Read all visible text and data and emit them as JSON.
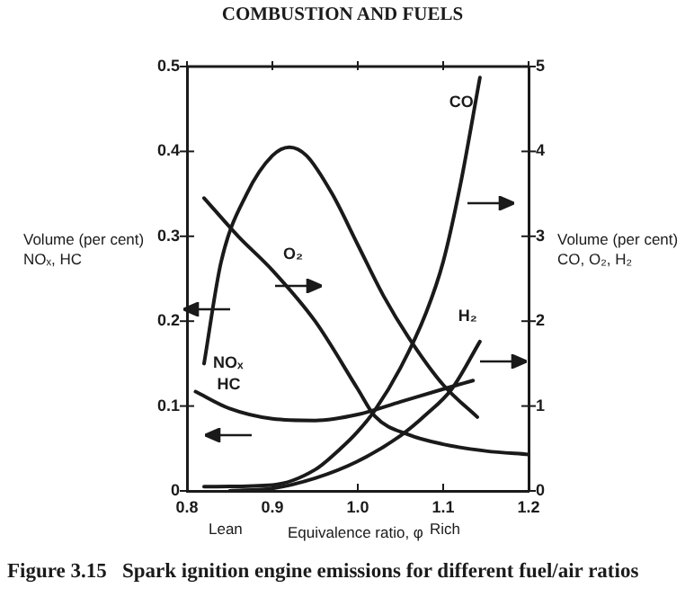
{
  "chart_data": {
    "type": "line",
    "title": "Figure 3.15   Spark ignition engine emissions for different fuel/air ratios",
    "xlabel": "Equivalence ratio, φ",
    "ylabel": "Volume (per cent)\nNOₓ, HC",
    "y2label": "Volume (per cent)\nCO, O₂, H₂",
    "xlim": [
      0.8,
      1.2
    ],
    "xticks": [
      0.8,
      0.9,
      {
        "value": 1,
        "label": "1.0"
      },
      1.1,
      1.2
    ],
    "ylim": [
      0,
      0.5
    ],
    "yticks": [
      0,
      0.1,
      0.2,
      0.3,
      0.4,
      0.5
    ],
    "y2lim": [
      0,
      5
    ],
    "y2ticks": [
      0,
      1,
      2,
      3,
      4,
      5
    ],
    "grid": false,
    "legend": false,
    "marker": "none",
    "line_style": "solid",
    "series": [
      {
        "name": "NOₓ",
        "color": "#1a1a1a",
        "x": [
          0.82,
          0.84,
          0.87,
          0.9,
          0.92,
          0.94,
          0.97,
          1.0,
          1.03,
          1.06,
          1.1,
          1.14
        ],
        "values": [
          0.15,
          0.27,
          0.35,
          0.395,
          0.405,
          0.395,
          0.35,
          0.29,
          0.23,
          0.18,
          0.125,
          0.087
        ]
      },
      {
        "name": "HC",
        "color": "#1a1a1a",
        "x": [
          0.81,
          0.85,
          0.9,
          0.95,
          1.0,
          1.05,
          1.1,
          1.135
        ],
        "values": [
          0.117,
          0.097,
          0.085,
          0.083,
          0.09,
          0.105,
          0.12,
          0.13
        ]
      },
      {
        "name": "O₂",
        "color": "#1a1a1a",
        "axis": "y2",
        "x": [
          0.82,
          0.86,
          0.9,
          0.95,
          1.0,
          1.02,
          1.06,
          1.1,
          1.15,
          1.2
        ],
        "values": [
          3.45,
          3.0,
          2.6,
          2.0,
          1.2,
          0.88,
          0.66,
          0.55,
          0.47,
          0.43
        ]
      },
      {
        "name": "CO",
        "color": "#1a1a1a",
        "axis": "y2",
        "x": [
          0.82,
          0.9,
          0.95,
          0.98,
          1.0,
          1.02,
          1.05,
          1.08,
          1.1,
          1.12,
          1.143
        ],
        "values": [
          0.05,
          0.07,
          0.25,
          0.5,
          0.7,
          0.95,
          1.45,
          2.1,
          2.7,
          3.6,
          4.87
        ]
      },
      {
        "name": "H₂",
        "color": "#1a1a1a",
        "axis": "y2",
        "x": [
          0.85,
          0.9,
          0.95,
          1.0,
          1.05,
          1.08,
          1.11,
          1.143
        ],
        "values": [
          0.0,
          0.03,
          0.15,
          0.35,
          0.65,
          0.9,
          1.2,
          1.76
        ]
      }
    ],
    "annotations": [
      "COMBUSTION AND FUELS",
      "Lean",
      "Rich"
    ]
  }
}
